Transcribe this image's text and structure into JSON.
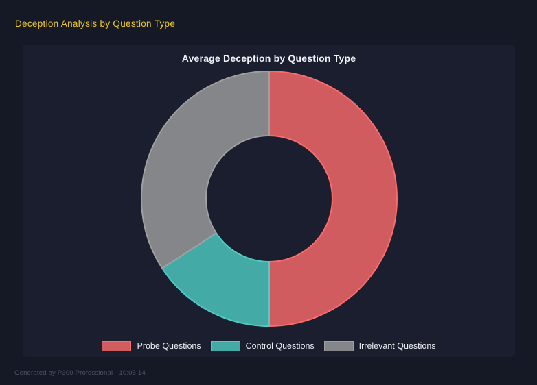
{
  "header": {
    "title": "Deception Analysis by Question Type"
  },
  "footer": {
    "text": "Generated by P300 Professional - 10:05:14"
  },
  "colors": {
    "page_bg": "#151825",
    "panel_bg": "#1b1e2f",
    "header_title": "#f0c929",
    "chart_title": "#f0f2f5",
    "legend_text": "#eceef2",
    "footer_text": "#4d5264",
    "probe": "#ff6b6b",
    "control": "#4ecdc4",
    "irrelevant": "#a0a0a0"
  },
  "chart_data": {
    "type": "pie",
    "variant": "doughnut",
    "title": "Average Deception by Question Type",
    "categories": [
      "Probe Questions",
      "Control Questions",
      "Irrelevant Questions"
    ],
    "values_percent": [
      50,
      15.8,
      34.2
    ],
    "colors": [
      "#ff6b6b",
      "#4ecdc4",
      "#a0a0a0"
    ],
    "fill_opacity": 0.8,
    "border_width": 2,
    "cutout_percent": 49,
    "start_angle_deg": 0,
    "direction": "clockwise",
    "legend_position": "bottom",
    "grid": false
  }
}
